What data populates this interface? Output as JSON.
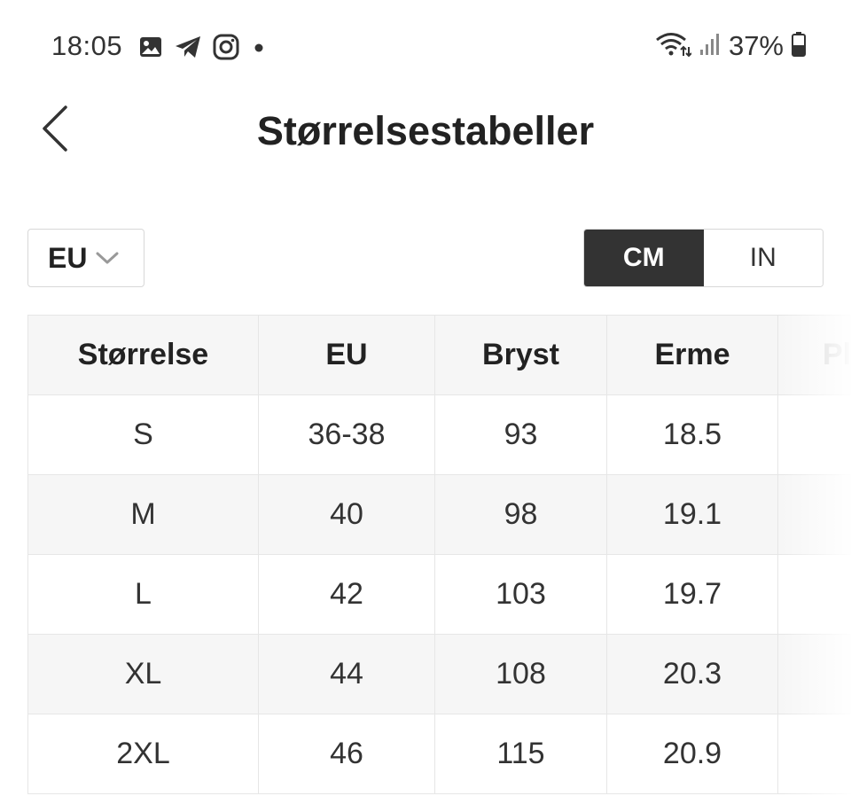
{
  "status_bar": {
    "time": "18:05",
    "battery": "37%",
    "icons_left": [
      "gallery-icon",
      "telegram-icon",
      "instagram-icon",
      "dot-icon"
    ],
    "icons_right": [
      "wifi-icon",
      "signal-icon",
      "battery-icon"
    ]
  },
  "header": {
    "title": "Størrelsestabeller",
    "back_icon": "chevron-left-icon"
  },
  "controls": {
    "region": "EU",
    "region_icon": "chevron-down-icon",
    "units": [
      "CM",
      "IN"
    ],
    "active_unit": "CM"
  },
  "table": {
    "headers": [
      "Størrelse",
      "EU",
      "Bryst",
      "Erme",
      "Pl"
    ],
    "rows": [
      [
        "S",
        "36-38",
        "93",
        "18.5",
        ""
      ],
      [
        "M",
        "40",
        "98",
        "19.1",
        ""
      ],
      [
        "L",
        "42",
        "103",
        "19.7",
        ""
      ],
      [
        "XL",
        "44",
        "108",
        "20.3",
        ""
      ],
      [
        "2XL",
        "46",
        "115",
        "20.9",
        ""
      ]
    ]
  },
  "colors": {
    "active_toggle": "#333333",
    "header_row": "#f6f6f6",
    "border": "#e6e6e6"
  }
}
